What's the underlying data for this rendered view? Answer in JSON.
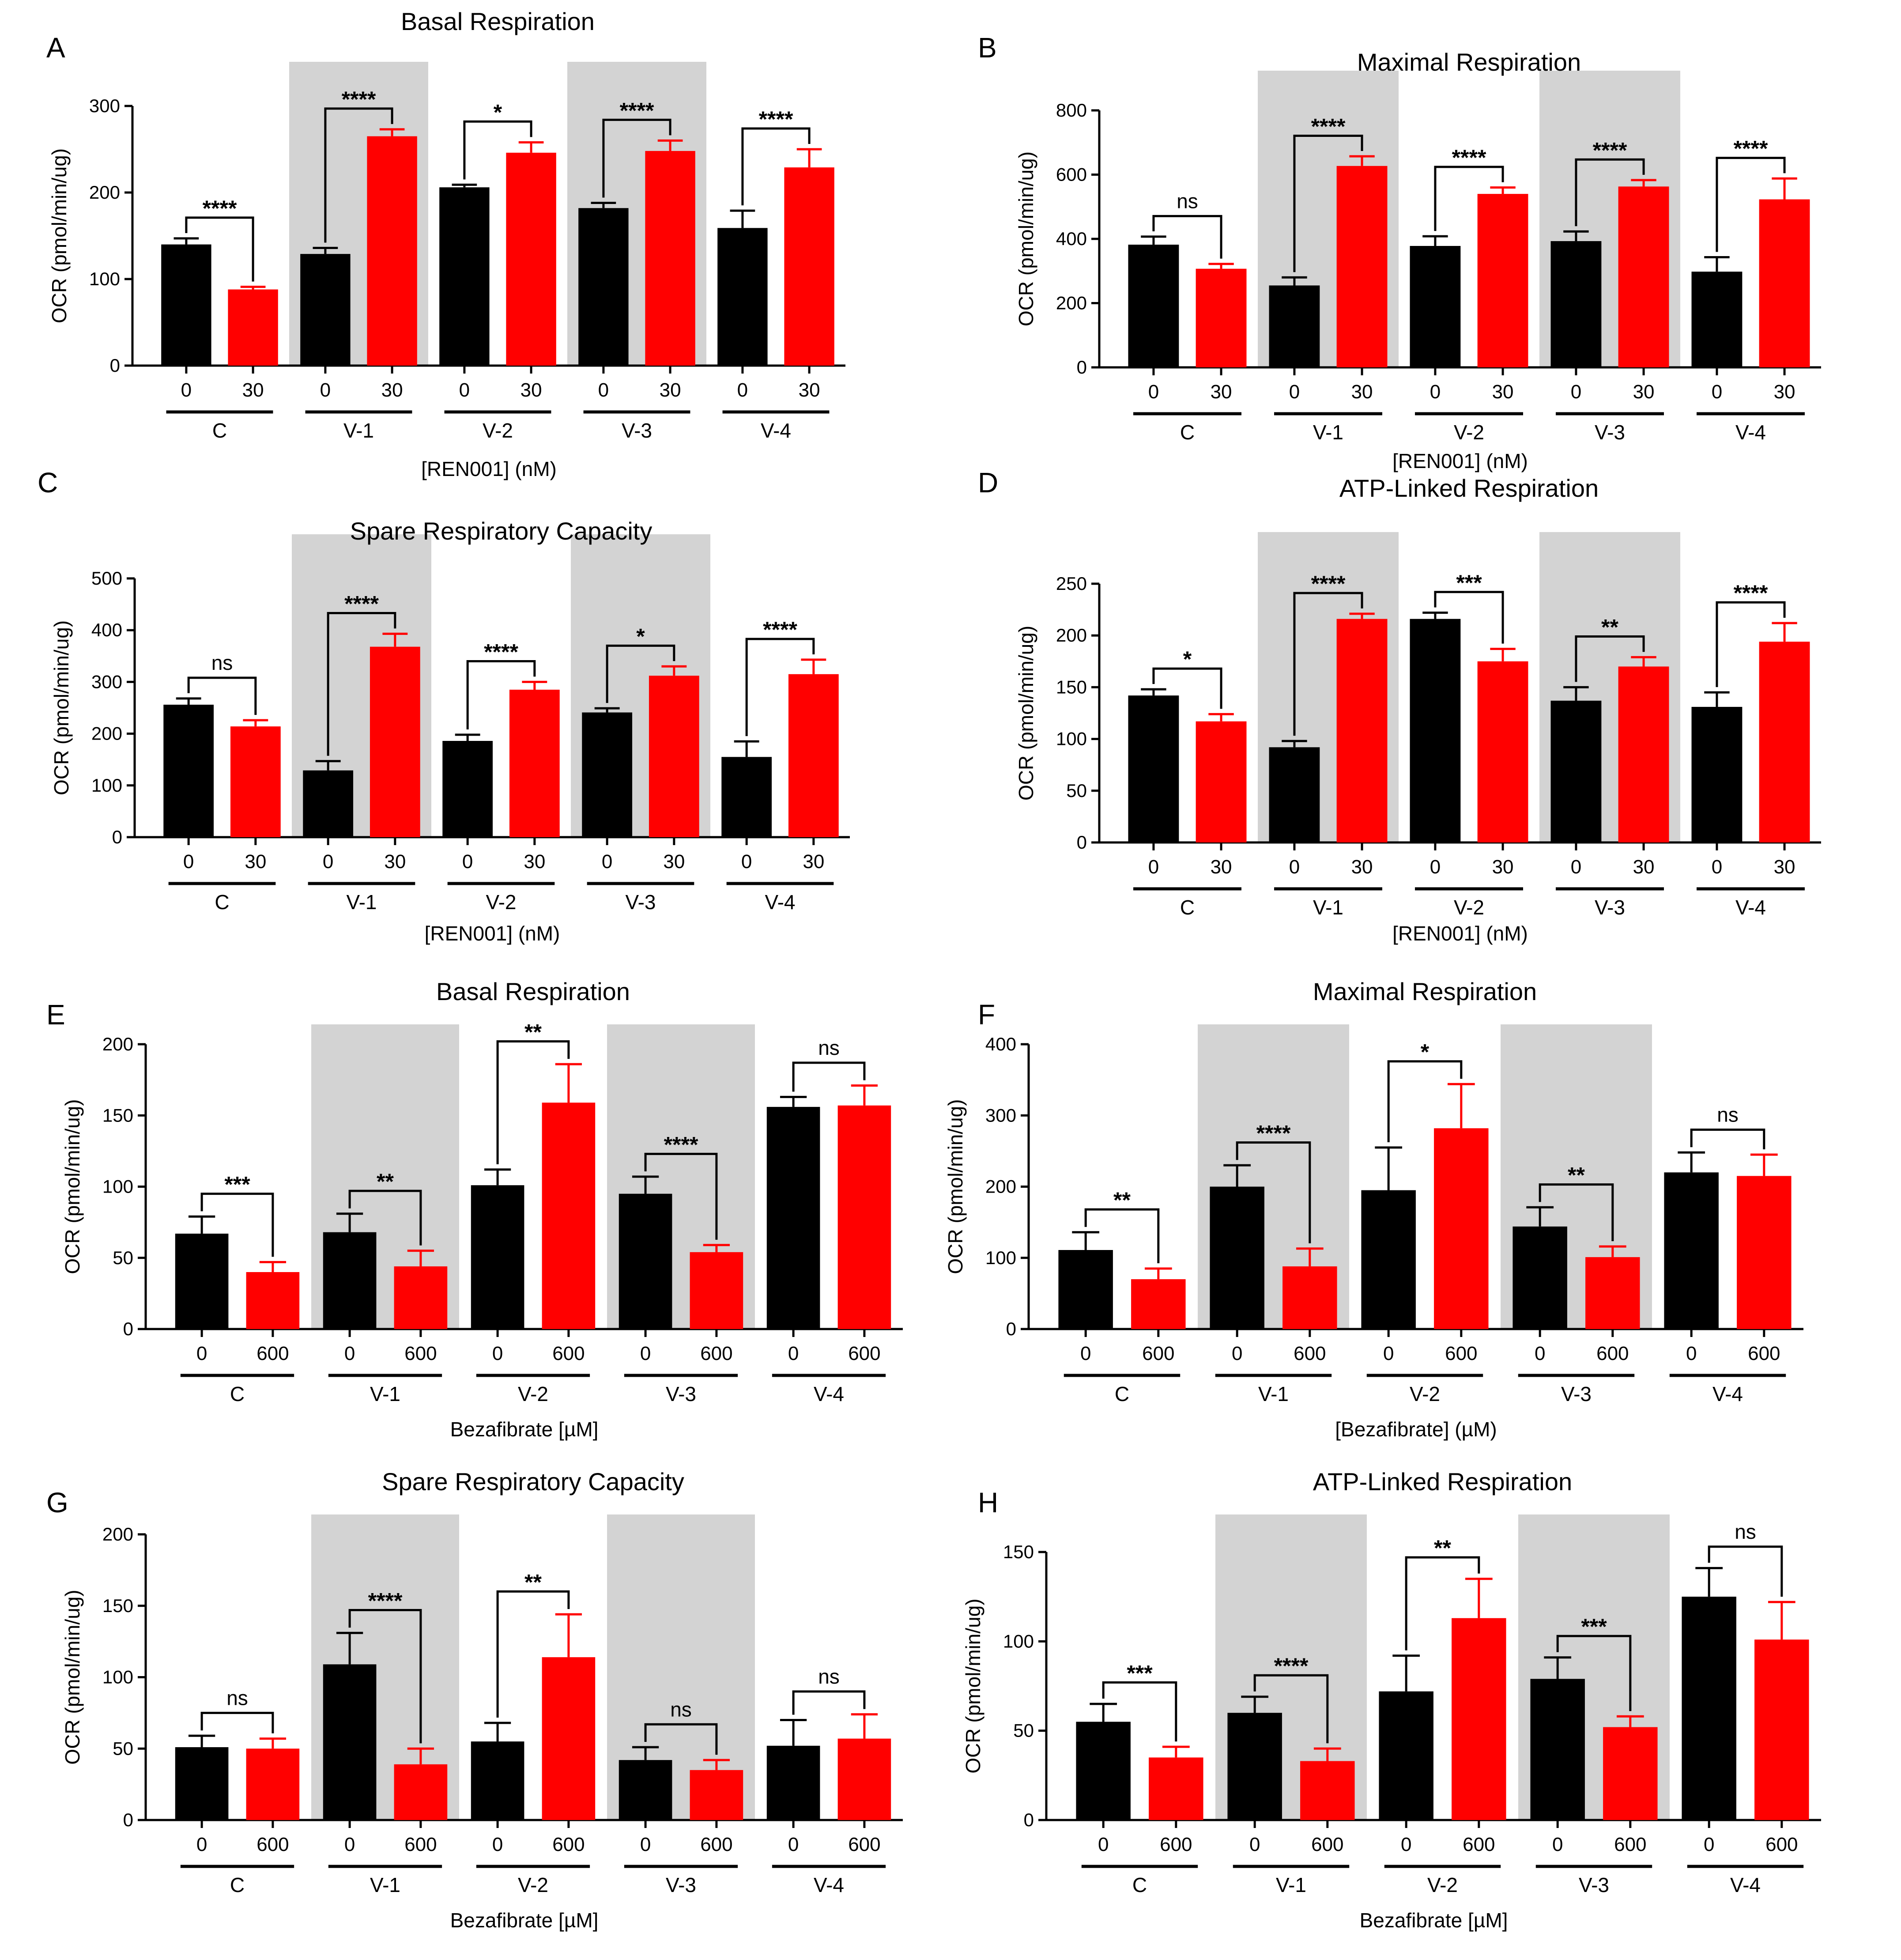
{
  "figure": {
    "groups": [
      "C",
      "V-1",
      "V-2",
      "V-3",
      "V-4"
    ],
    "colors": {
      "untreated": "#000000",
      "treated": "#ff0000",
      "shade": "#d3d3d3",
      "axis": "#000000"
    }
  },
  "chart_data": [
    {
      "panel": "A",
      "type": "bar",
      "title": "Basal Respiration",
      "ylabel": "OCR (pmol/min/ug)",
      "xlabel": "[REN001] (nM)",
      "ylim": [
        0,
        300
      ],
      "yticks": [
        0,
        100,
        200,
        300
      ],
      "doses": [
        "0",
        "30"
      ],
      "categories": [
        "C",
        "V-1",
        "V-2",
        "V-3",
        "V-4"
      ],
      "shaded_groups": [
        "V-1",
        "V-3"
      ],
      "series": [
        {
          "name": "0 nM",
          "values": [
            140,
            129,
            206,
            182,
            159
          ],
          "errors": [
            7,
            7,
            3,
            6,
            20
          ]
        },
        {
          "name": "30 nM",
          "values": [
            88,
            265,
            246,
            248,
            229
          ],
          "errors": [
            3,
            8,
            12,
            12,
            21
          ]
        }
      ],
      "significance": [
        "****",
        "****",
        "*",
        "****",
        "****"
      ]
    },
    {
      "panel": "B",
      "type": "bar",
      "title": "Maximal Respiration",
      "ylabel": "OCR (pmol/min/ug)",
      "xlabel": "[REN001] (nM)",
      "ylim": [
        0,
        800
      ],
      "yticks": [
        0,
        200,
        400,
        600,
        800
      ],
      "doses": [
        "0",
        "30"
      ],
      "categories": [
        "C",
        "V-1",
        "V-2",
        "V-3",
        "V-4"
      ],
      "shaded_groups": [
        "V-1",
        "V-3"
      ],
      "series": [
        {
          "name": "0 nM",
          "values": [
            382,
            255,
            378,
            393,
            298
          ],
          "errors": [
            25,
            25,
            30,
            30,
            45
          ]
        },
        {
          "name": "30 nM",
          "values": [
            307,
            627,
            540,
            563,
            523
          ],
          "errors": [
            15,
            30,
            20,
            20,
            65
          ]
        }
      ],
      "significance": [
        "ns",
        "****",
        "****",
        "****",
        "****"
      ]
    },
    {
      "panel": "C",
      "type": "bar",
      "title": "Spare Respiratory Capacity",
      "ylabel": "OCR (pmol/min/ug)",
      "xlabel": "[REN001] (nM)",
      "ylim": [
        0,
        500
      ],
      "yticks": [
        0,
        100,
        200,
        300,
        400,
        500
      ],
      "doses": [
        "0",
        "30"
      ],
      "categories": [
        "C",
        "V-1",
        "V-2",
        "V-3",
        "V-4"
      ],
      "shaded_groups": [
        "V-1",
        "V-3"
      ],
      "series": [
        {
          "name": "0 nM",
          "values": [
            256,
            129,
            186,
            241,
            155
          ],
          "errors": [
            12,
            18,
            12,
            8,
            30
          ]
        },
        {
          "name": "30 nM",
          "values": [
            214,
            368,
            285,
            312,
            315
          ],
          "errors": [
            12,
            25,
            15,
            18,
            28
          ]
        }
      ],
      "significance": [
        "ns",
        "****",
        "****",
        "*",
        "****"
      ]
    },
    {
      "panel": "D",
      "type": "bar",
      "title": "ATP-Linked Respiration",
      "ylabel": "OCR (pmol/min/ug)",
      "xlabel": "[REN001] (nM)",
      "ylim": [
        0,
        250
      ],
      "yticks": [
        0,
        50,
        100,
        150,
        200,
        250
      ],
      "doses": [
        "0",
        "30"
      ],
      "categories": [
        "C",
        "V-1",
        "V-2",
        "V-3",
        "V-4"
      ],
      "shaded_groups": [
        "V-1",
        "V-3"
      ],
      "series": [
        {
          "name": "0 nM",
          "values": [
            142,
            92,
            216,
            137,
            131
          ],
          "errors": [
            6,
            6,
            6,
            13,
            14
          ]
        },
        {
          "name": "30 nM",
          "values": [
            117,
            216,
            175,
            170,
            194
          ],
          "errors": [
            7,
            5,
            12,
            9,
            18
          ]
        }
      ],
      "significance": [
        "*",
        "****",
        "***",
        "**",
        "****"
      ]
    },
    {
      "panel": "E",
      "type": "bar",
      "title": "Basal Respiration",
      "ylabel": "OCR (pmol/min/ug)",
      "xlabel": "Bezafibrate [µM]",
      "ylim": [
        0,
        200
      ],
      "yticks": [
        0,
        50,
        100,
        150,
        200
      ],
      "doses": [
        "0",
        "600"
      ],
      "categories": [
        "C",
        "V-1",
        "V-2",
        "V-3",
        "V-4"
      ],
      "shaded_groups": [
        "V-1",
        "V-3"
      ],
      "series": [
        {
          "name": "0 µM",
          "values": [
            67,
            68,
            101,
            95,
            156
          ],
          "errors": [
            12,
            13,
            11,
            12,
            7
          ]
        },
        {
          "name": "600 µM",
          "values": [
            40,
            44,
            159,
            54,
            157
          ],
          "errors": [
            7,
            11,
            27,
            5,
            14
          ]
        }
      ],
      "significance": [
        "***",
        "**",
        "**",
        "****",
        "ns"
      ]
    },
    {
      "panel": "F",
      "type": "bar",
      "title": "Maximal Respiration",
      "ylabel": "OCR (pmol/min/ug)",
      "xlabel": "[Bezafibrate] (µM)",
      "ylim": [
        0,
        400
      ],
      "yticks": [
        0,
        100,
        200,
        300,
        400
      ],
      "doses": [
        "0",
        "600"
      ],
      "categories": [
        "C",
        "V-1",
        "V-2",
        "V-3",
        "V-4"
      ],
      "shaded_groups": [
        "V-1",
        "V-3"
      ],
      "series": [
        {
          "name": "0 µM",
          "values": [
            111,
            200,
            195,
            144,
            220
          ],
          "errors": [
            25,
            30,
            60,
            27,
            28
          ]
        },
        {
          "name": "600 µM",
          "values": [
            70,
            88,
            282,
            101,
            215
          ],
          "errors": [
            15,
            25,
            62,
            15,
            30
          ]
        }
      ],
      "significance": [
        "**",
        "****",
        "*",
        "**",
        "ns"
      ]
    },
    {
      "panel": "G",
      "type": "bar",
      "title": "Spare Respiratory Capacity",
      "ylabel": "OCR (pmol/min/ug)",
      "xlabel": "Bezafibrate [µM]",
      "ylim": [
        0,
        200
      ],
      "yticks": [
        0,
        50,
        100,
        150,
        200
      ],
      "doses": [
        "0",
        "600"
      ],
      "categories": [
        "C",
        "V-1",
        "V-2",
        "V-3",
        "V-4"
      ],
      "shaded_groups": [
        "V-1",
        "V-3"
      ],
      "series": [
        {
          "name": "0 µM",
          "values": [
            51,
            109,
            55,
            42,
            52
          ],
          "errors": [
            8,
            22,
            13,
            9,
            18
          ]
        },
        {
          "name": "600 µM",
          "values": [
            50,
            39,
            114,
            35,
            57
          ],
          "errors": [
            7,
            11,
            30,
            7,
            17
          ]
        }
      ],
      "significance": [
        "ns",
        "****",
        "**",
        "ns",
        "ns"
      ]
    },
    {
      "panel": "H",
      "type": "bar",
      "title": "ATP-Linked Respiration",
      "ylabel": "OCR (pmol/min/ug)",
      "xlabel": "Bezafibrate [µM]",
      "ylim": [
        0,
        150
      ],
      "yticks": [
        0,
        50,
        100,
        150
      ],
      "doses": [
        "0",
        "600"
      ],
      "categories": [
        "C",
        "V-1",
        "V-2",
        "V-3",
        "V-4"
      ],
      "shaded_groups": [
        "V-1",
        "V-3"
      ],
      "series": [
        {
          "name": "0 µM",
          "values": [
            55,
            60,
            72,
            79,
            125
          ],
          "errors": [
            10,
            9,
            20,
            12,
            16
          ]
        },
        {
          "name": "600 µM",
          "values": [
            35,
            33,
            113,
            52,
            101
          ],
          "errors": [
            6,
            7,
            22,
            6,
            21
          ]
        }
      ],
      "significance": [
        "***",
        "****",
        "**",
        "***",
        "ns"
      ]
    }
  ]
}
